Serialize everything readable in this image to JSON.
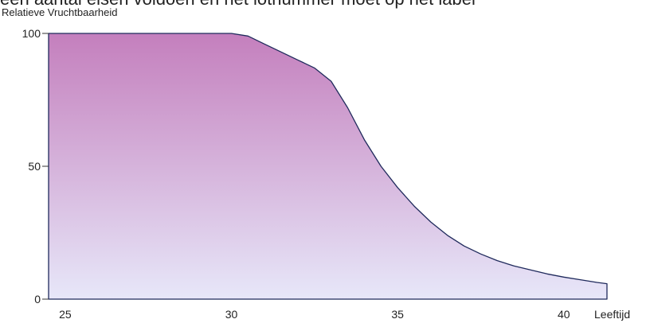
{
  "cut_text": "een aantal eisen voldoen en het lotnummer moet op het label",
  "chart_data": {
    "type": "area",
    "title": "",
    "ylabel": "Relatieve Vruchtbaarheid",
    "xlabel": "Leeftijd",
    "xlim": [
      24.5,
      41.3
    ],
    "ylim": [
      0,
      100
    ],
    "x_ticks": [
      25,
      30,
      35,
      40
    ],
    "y_ticks": [
      0,
      50,
      100
    ],
    "x": [
      24.5,
      25,
      26,
      27,
      28,
      29,
      30,
      30.5,
      31,
      31.5,
      32,
      32.5,
      33,
      33.5,
      34,
      34.5,
      35,
      35.5,
      36,
      36.5,
      37,
      37.5,
      38,
      38.5,
      39,
      39.5,
      40,
      40.5,
      41,
      41.3
    ],
    "values": [
      100,
      100,
      100,
      100,
      100,
      100,
      100,
      99,
      96,
      93,
      90,
      87,
      82,
      72,
      60,
      50,
      42,
      35,
      29,
      24,
      20,
      17,
      14.5,
      12.5,
      11,
      9.5,
      8.3,
      7.3,
      6.3,
      5.8
    ],
    "fill_top_color": "#c47fbd",
    "fill_bottom_color": "#e7e7f9",
    "line_color": "#1f2a5c",
    "grid": false
  }
}
